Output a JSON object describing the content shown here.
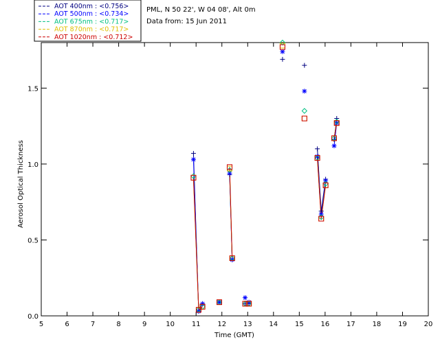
{
  "header": {
    "site_line": "PML, N 50 22', W 04 08', Alt 0m",
    "date_line": "Data from: 15 Jun 2011"
  },
  "chart_data": {
    "type": "line",
    "title": "",
    "xlabel": "Time (GMT)",
    "ylabel": "Aerosol Optical Thickness",
    "xlim": [
      5,
      20
    ],
    "ylim": [
      0,
      1.8
    ],
    "x_ticks": [
      5,
      6,
      7,
      8,
      9,
      10,
      11,
      12,
      13,
      14,
      15,
      16,
      17,
      18,
      19,
      20
    ],
    "y_ticks": [
      0.0,
      0.5,
      1.0,
      1.5
    ],
    "y_tick_labels": [
      "0.0",
      "0.5",
      "1.0",
      "1.5"
    ],
    "grid": false,
    "legend_placement": "top-left",
    "series": [
      {
        "name": "AOT  400nm : <0.756>",
        "color": "#000080",
        "marker": "plus",
        "x": [
          10.9,
          11.1,
          11.25,
          11.9,
          12.3,
          12.4,
          12.9,
          13.05,
          14.35,
          15.2,
          15.7,
          15.85,
          16.02,
          16.35,
          16.45
        ],
        "y": [
          1.07,
          0.03,
          0.08,
          0.09,
          0.93,
          0.37,
          0.08,
          0.08,
          1.69,
          1.65,
          1.1,
          0.69,
          0.9,
          1.16,
          1.3
        ]
      },
      {
        "name": "AOT  500nm : <0.734>",
        "color": "#0000ff",
        "marker": "asterisk",
        "x": [
          10.9,
          11.1,
          11.25,
          11.9,
          12.3,
          12.4,
          12.9,
          13.05,
          14.35,
          15.2,
          15.7,
          15.85,
          16.02,
          16.35,
          16.45
        ],
        "y": [
          1.03,
          0.03,
          0.08,
          0.09,
          0.94,
          0.37,
          0.12,
          0.09,
          1.74,
          1.48,
          1.05,
          0.67,
          0.89,
          1.12,
          1.27
        ]
      },
      {
        "name": "AOT  675nm : <0.717>",
        "color": "#00c080",
        "marker": "diamond",
        "x": [
          10.9,
          11.1,
          11.25,
          11.9,
          12.3,
          12.4,
          12.9,
          13.05,
          14.35,
          15.2,
          15.7,
          15.85,
          16.02,
          16.35,
          16.45
        ],
        "y": [
          0.92,
          0.04,
          0.06,
          0.09,
          0.96,
          0.38,
          0.08,
          0.08,
          1.8,
          1.35,
          1.04,
          0.65,
          0.87,
          1.17,
          1.28
        ]
      },
      {
        "name": "AOT  870nm : <0.717>",
        "color": "#e0c000",
        "marker": "square",
        "x": [
          10.9,
          11.1,
          11.25,
          11.9,
          12.3,
          12.4,
          12.9,
          13.05,
          14.35,
          15.2,
          15.7,
          15.85,
          16.02,
          16.35,
          16.45
        ],
        "y": [
          0.91,
          0.04,
          0.06,
          0.09,
          0.97,
          0.38,
          0.08,
          0.08,
          1.78,
          1.3,
          1.04,
          0.64,
          0.86,
          1.17,
          1.27
        ]
      },
      {
        "name": "AOT 1020nm : <0.712>",
        "color": "#cc0000",
        "marker": "square",
        "x": [
          10.9,
          11.1,
          11.25,
          11.9,
          12.3,
          12.4,
          12.9,
          13.05,
          14.35,
          15.2,
          15.7,
          15.85,
          16.02,
          16.35,
          16.45
        ],
        "y": [
          0.91,
          0.04,
          0.06,
          0.09,
          0.98,
          0.38,
          0.08,
          0.08,
          1.77,
          1.3,
          1.04,
          0.64,
          0.86,
          1.17,
          1.27
        ]
      }
    ],
    "line_segments": [
      [
        0,
        2
      ],
      [
        4,
        5
      ],
      [
        10,
        12
      ],
      [
        13,
        14
      ]
    ]
  }
}
